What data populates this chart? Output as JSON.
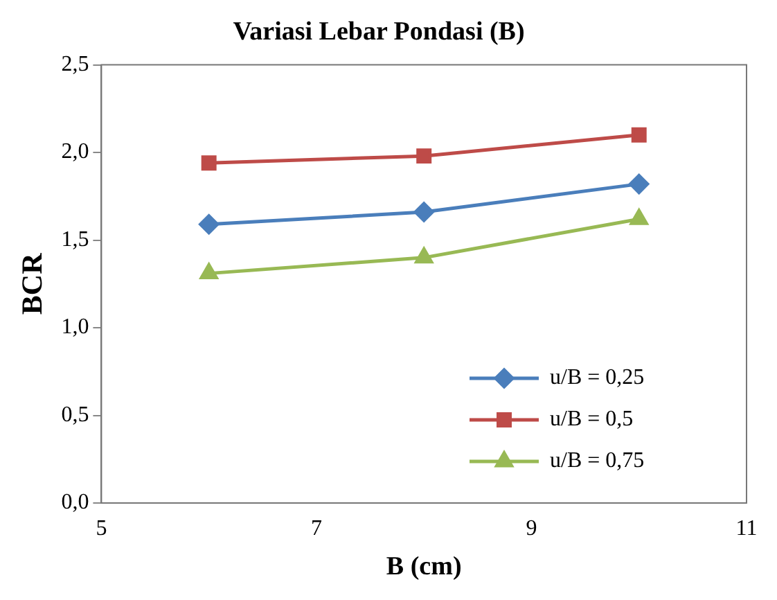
{
  "chart_data": {
    "type": "line",
    "title": "Variasi Lebar Pondasi (B)",
    "xlabel": "B (cm)",
    "ylabel": "BCR",
    "x": [
      6,
      8,
      10
    ],
    "series": [
      {
        "name": "u/B = 0,25",
        "color": "#4a7ebb",
        "values": [
          1.59,
          1.66,
          1.82
        ],
        "marker": "diamond"
      },
      {
        "name": "u/B = 0,5",
        "color": "#be4b48",
        "values": [
          1.94,
          1.98,
          2.1
        ],
        "marker": "square"
      },
      {
        "name": "u/B = 0,75",
        "color": "#98b954",
        "values": [
          1.31,
          1.4,
          1.62
        ],
        "marker": "triangle"
      }
    ],
    "xlim": [
      5,
      11
    ],
    "xticks": [
      5,
      7,
      9,
      11
    ],
    "ylim": [
      0,
      2.5
    ],
    "yticks": [
      {
        "value": 0,
        "label": "0,0"
      },
      {
        "value": 0.5,
        "label": "0,5"
      },
      {
        "value": 1,
        "label": "1,0"
      },
      {
        "value": 1.5,
        "label": "1,5"
      },
      {
        "value": 2,
        "label": "2,0"
      },
      {
        "value": 2.5,
        "label": "2,5"
      }
    ],
    "grid": false,
    "legend": "bottom right",
    "line_style": "solid"
  }
}
